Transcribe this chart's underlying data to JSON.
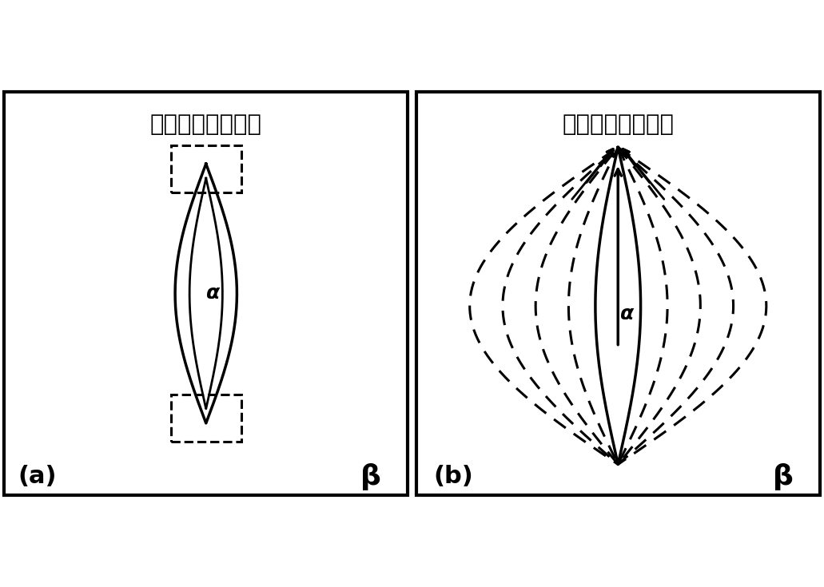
{
  "title_a": "尖端能量集中区域",
  "title_b": "电流的瞬时不均匀",
  "label_a": "(a)",
  "label_b": "(b)",
  "label_beta": "β",
  "bg_color": "#ffffff",
  "border_color": "#000000",
  "line_color": "#000000",
  "fig_width": 10.31,
  "fig_height": 7.35,
  "dpi": 100
}
